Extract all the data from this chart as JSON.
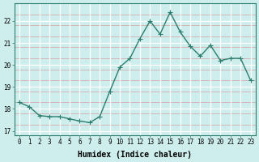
{
  "x": [
    0,
    1,
    2,
    3,
    4,
    5,
    6,
    7,
    8,
    9,
    10,
    11,
    12,
    13,
    14,
    15,
    16,
    17,
    18,
    19,
    20,
    21,
    22,
    23
  ],
  "y": [
    18.3,
    18.1,
    17.7,
    17.65,
    17.65,
    17.55,
    17.45,
    17.38,
    17.65,
    18.8,
    19.9,
    20.3,
    21.2,
    22.0,
    21.4,
    22.4,
    21.5,
    20.85,
    20.4,
    20.9,
    20.2,
    20.3,
    20.3,
    19.3
  ],
  "line_color": "#2d7d6e",
  "marker": "D",
  "marker_size": 2.5,
  "bg_color": "#cdeeed",
  "major_grid_color": "#b0d8d5",
  "white_grid_color": "#e8f9f7",
  "xlabel": "Humidex (Indice chaleur)",
  "ylim": [
    16.8,
    22.8
  ],
  "yticks": [
    17,
    18,
    19,
    20,
    21,
    22
  ],
  "xticks": [
    0,
    1,
    2,
    3,
    4,
    5,
    6,
    7,
    8,
    9,
    10,
    11,
    12,
    13,
    14,
    15,
    16,
    17,
    18,
    19,
    20,
    21,
    22,
    23
  ],
  "tick_fontsize": 5.5,
  "xlabel_fontsize": 7,
  "line_width": 1.0
}
